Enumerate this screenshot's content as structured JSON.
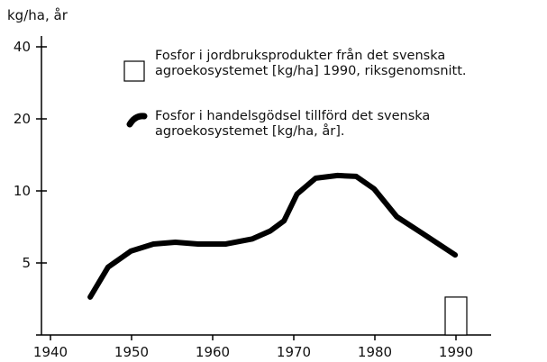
{
  "chart_data": {
    "type": "line",
    "y_label": "kg/ha, år",
    "ylog": true,
    "xlim": [
      1938,
      1994
    ],
    "ylim": [
      2.5,
      40
    ],
    "xticks": [
      1940,
      1950,
      1960,
      1970,
      1980,
      1990
    ],
    "yticks": [
      5,
      10,
      20,
      40
    ],
    "series": [
      {
        "name": "Fosfor i jordbruksprodukter från det svenska agroekosystemet [kg/ha] 1990, riksgenomsnitt.",
        "type": "bar",
        "color": "#ffffff",
        "x": [
          1990
        ],
        "values": [
          3.6
        ]
      },
      {
        "name": "Fosfor i handelsgödsel tillförd det svenska agroekosystemet [kg/ha, år].",
        "type": "line",
        "color": "#000000",
        "x": [
          1944.9,
          1947.1,
          1949.9,
          1952.7,
          1955.4,
          1958.2,
          1961.6,
          1964.9,
          1967.1,
          1968.8,
          1970.4,
          1972.7,
          1975.4,
          1977.7,
          1979.9,
          1982.7,
          1986,
          1989.9
        ],
        "values": [
          3.6,
          4.8,
          5.6,
          6.0,
          6.1,
          6.0,
          6.0,
          6.3,
          6.8,
          7.5,
          9.7,
          11.3,
          11.6,
          11.5,
          10.2,
          7.8,
          6.6,
          5.4
        ]
      }
    ]
  }
}
